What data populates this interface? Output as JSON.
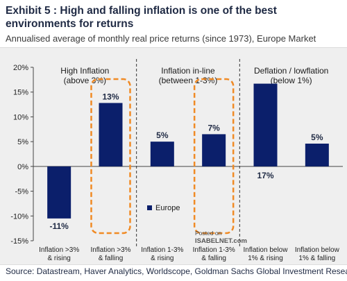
{
  "title": "Exhibit 5 : High and falling inflation is one of the best environments for returns",
  "subtitle": "Annualised average of monthly real price returns (since 1973), Europe Market",
  "source": "Source: Datastream, Haver Analytics, Worldscope, Goldman Sachs Global Investment Research",
  "watermark": {
    "line1": "Posted on",
    "line2": "ISABELNET.com"
  },
  "colors": {
    "bar": "#0b1f6b",
    "highlight": "#f08a24",
    "divider": "#333333",
    "axis": "#444444",
    "background": "#efefef"
  },
  "chart_data": {
    "type": "bar",
    "ylim": [
      -15,
      20
    ],
    "ytick_step": 5,
    "ytick_labels": [
      "20%",
      "15%",
      "10%",
      "5%",
      "0%",
      "-5%",
      "-10%",
      "-15%"
    ],
    "grid": false,
    "legend_position": "center",
    "categories": [
      "Inflation >3% & rising",
      "Inflation >3% & falling",
      "Inflation 1-3% & rising",
      "Inflation 1-3% & falling",
      "Inflation below 1% & rising",
      "Inflation below 1% & falling"
    ],
    "category_lines": [
      [
        "Inflation >3%",
        "& rising"
      ],
      [
        "Inflation >3%",
        "& falling"
      ],
      [
        "Inflation 1-3%",
        "& rising"
      ],
      [
        "Inflation 1-3%",
        "& falling"
      ],
      [
        "Inflation below",
        "1% & rising"
      ],
      [
        "Inflation below",
        "1% & falling"
      ]
    ],
    "series": [
      {
        "name": "Europe",
        "values": [
          -10.5,
          12.8,
          5.0,
          6.5,
          16.7,
          4.6
        ],
        "data_labels": [
          "-11%",
          "13%",
          "5%",
          "7%",
          "17%",
          "5%"
        ]
      }
    ],
    "groups": [
      {
        "lines": [
          "High Inflation",
          "(above 3%)"
        ]
      },
      {
        "lines": [
          "Inflation in-line",
          "(between 1-3%)"
        ]
      },
      {
        "lines": [
          "Deflation / lowflation",
          "(below 1%)"
        ]
      }
    ],
    "highlighted_categories": [
      1,
      3
    ]
  }
}
